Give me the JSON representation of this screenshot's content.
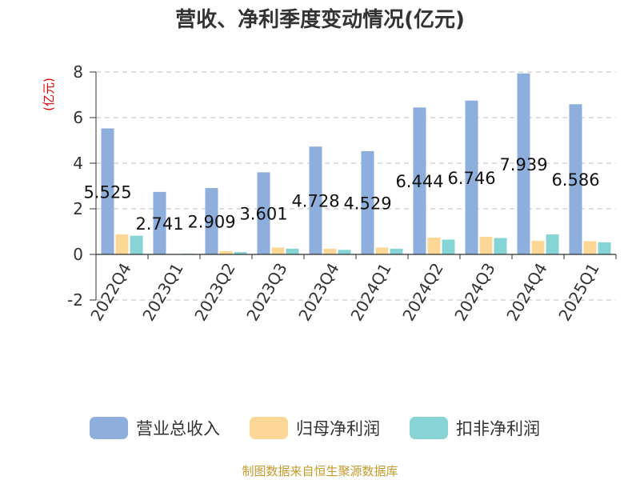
{
  "title": "营收、净利季度变动情况(亿元)",
  "unit_label": "(亿元)",
  "source": "制图数据来自恒生聚源数据库",
  "chart_data": {
    "type": "bar",
    "categories": [
      "2022Q4",
      "2023Q1",
      "2023Q2",
      "2023Q3",
      "2023Q4",
      "2024Q1",
      "2024Q2",
      "2024Q3",
      "2024Q4",
      "2025Q1"
    ],
    "series": [
      {
        "name": "营业总收入",
        "color": "#8eaedb",
        "values": [
          5.525,
          2.741,
          2.909,
          3.601,
          4.728,
          4.529,
          6.444,
          6.746,
          7.939,
          6.586
        ],
        "labels": [
          "5.525",
          "2.741",
          "2.909",
          "3.601",
          "4.728",
          "4.529",
          "6.444",
          "6.746",
          "7.939",
          "6.586"
        ]
      },
      {
        "name": "归母净利润",
        "color": "#fdd795",
        "values": [
          0.88,
          0.02,
          0.14,
          0.3,
          0.25,
          0.3,
          0.74,
          0.77,
          0.6,
          0.58
        ]
      },
      {
        "name": "扣非净利润",
        "color": "#86d4d6",
        "values": [
          0.82,
          0.03,
          0.1,
          0.25,
          0.2,
          0.25,
          0.65,
          0.72,
          0.88,
          0.53
        ]
      }
    ],
    "yticks": [
      "8",
      "6",
      "4",
      "2",
      "0",
      "-2"
    ],
    "ylim": [
      -2,
      8
    ],
    "grid": true,
    "legend_position": "bottom"
  }
}
